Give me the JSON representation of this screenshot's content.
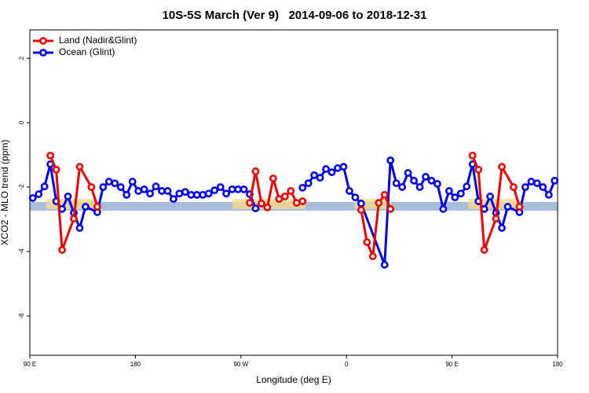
{
  "chart_data": {
    "type": "line",
    "title": "10S-5S March (Ver 9)   2014-09-06 to 2018-12-31",
    "x_label": "Longitude (deg E)",
    "y_label": "XCO2 - MLO trend (ppm)",
    "xlim": [
      90,
      540
    ],
    "xticks": [
      {
        "value": 90,
        "label": "90 E"
      },
      180,
      {
        "value": 270,
        "label": "90 W"
      },
      {
        "value": 360,
        "label": "0"
      },
      {
        "value": 450,
        "label": "90 E"
      },
      {
        "value": 540,
        "label": "180"
      }
    ],
    "ylim": [
      -7.22,
      2.88
    ],
    "yticks": [
      2,
      0,
      -2,
      -4,
      -6
    ],
    "legend": "top-left",
    "shaded_band": {
      "ylim": [
        -2.73,
        -2.46
      ],
      "color": "#a7bedc"
    },
    "land_spans": {
      "x": [
        [
          104,
          148
        ],
        [
          263,
          325
        ],
        [
          367,
          398
        ],
        [
          464,
          508
        ]
      ],
      "color": "#f6d98c"
    },
    "series": [
      {
        "name": "Land (Nadir&Glint)",
        "color": "#ee0000",
        "x": [
          107.5,
          112.5,
          117.5,
          127.5,
          132.5,
          142.5,
          147.5,
          null,
          277.5,
          282.5,
          287.5,
          292.5,
          297.5,
          302.5,
          307.5,
          312.5,
          317.5,
          322.5,
          null,
          372.5,
          377.5,
          382.5,
          387.5,
          392.5,
          397.5,
          null,
          467.5,
          472.5,
          477.5,
          487.5,
          492.5,
          502.5,
          507.5
        ],
        "values": [
          -1.02,
          -1.46,
          -3.95,
          -2.98,
          -1.37,
          -2.0,
          -2.61,
          null,
          -2.49,
          -1.51,
          -2.51,
          -2.63,
          -1.73,
          -2.37,
          -2.29,
          -2.12,
          -2.49,
          -2.44,
          null,
          -2.71,
          -3.71,
          -4.15,
          -2.49,
          -2.24,
          -2.68,
          null,
          -1.02,
          -1.46,
          -3.95,
          -2.98,
          -1.37,
          -2.0,
          -2.61
        ]
      },
      {
        "name": "Ocean (Glint)",
        "color": "#0000ee",
        "x": [
          92.5,
          97.5,
          102.5,
          107.5,
          112.5,
          117.5,
          122.5,
          127.5,
          132.5,
          137.5,
          147.5,
          152.5,
          157.5,
          162.5,
          167.5,
          172.5,
          177.5,
          182.5,
          187.5,
          192.5,
          197.5,
          202.5,
          207.5,
          212.5,
          217.5,
          222.5,
          227.5,
          232.5,
          237.5,
          242.5,
          247.5,
          252.5,
          257.5,
          262.5,
          267.5,
          272.5,
          277.5,
          282.5,
          null,
          322.5,
          327.5,
          332.5,
          337.5,
          342.5,
          347.5,
          352.5,
          357.5,
          362.5,
          367.5,
          372.5,
          392.5,
          397.5,
          402.5,
          407.5,
          412.5,
          417.5,
          422.5,
          427.5,
          432.5,
          437.5,
          442.5,
          447.5,
          452.5,
          457.5,
          462.5,
          467.5,
          472.5,
          477.5,
          482.5,
          487.5,
          492.5,
          497.5,
          507.5,
          512.5,
          517.5,
          522.5,
          527.5,
          532.5,
          537.5
        ],
        "values": [
          -2.34,
          -2.22,
          -1.98,
          -1.29,
          -2.44,
          -2.68,
          -2.29,
          -2.8,
          -3.27,
          -2.61,
          -2.78,
          -2.0,
          -1.83,
          -1.88,
          -2.0,
          -2.24,
          -1.83,
          -2.12,
          -2.07,
          -2.2,
          -1.98,
          -2.12,
          -2.12,
          -2.37,
          -2.2,
          -2.15,
          -2.24,
          -2.24,
          -2.24,
          -2.2,
          -2.1,
          -2.0,
          -2.2,
          -2.07,
          -2.07,
          -2.07,
          -2.22,
          -2.66,
          null,
          -2.02,
          -1.88,
          -1.63,
          -1.71,
          -1.44,
          -1.54,
          -1.41,
          -1.37,
          -2.12,
          -2.32,
          -2.51,
          -4.41,
          -1.17,
          -1.88,
          -2.0,
          -1.56,
          -1.8,
          -2.0,
          -1.68,
          -1.8,
          -1.9,
          -2.68,
          -2.12,
          -2.32,
          -2.2,
          -1.98,
          -1.29,
          -2.44,
          -2.68,
          -2.29,
          -2.8,
          -3.27,
          -2.61,
          -2.78,
          -2.0,
          -1.83,
          -1.88,
          -2.0,
          -2.24,
          -1.8
        ]
      }
    ]
  }
}
